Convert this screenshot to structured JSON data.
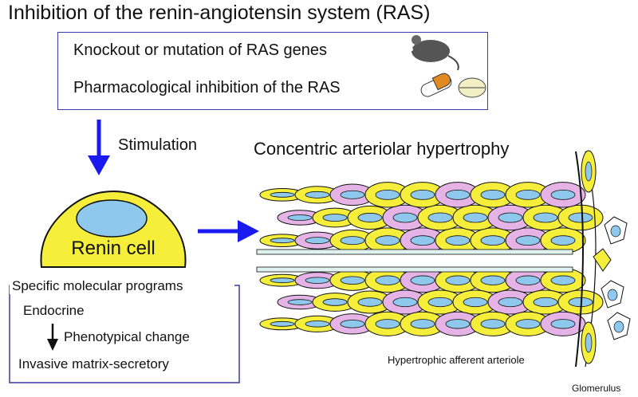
{
  "title": "Inhibition of the renin-angiotensin system (RAS)",
  "causes": {
    "item1": "Knockout or mutation of RAS genes",
    "item2": "Pharmacological inhibition of the RAS"
  },
  "arrow_label": "Stimulation",
  "outcome_title": "Concentric arteriolar hypertrophy",
  "cell_label": "Renin cell",
  "programs": {
    "heading": "Specific molecular programs",
    "from": "Endocrine",
    "change": "Phenotypical change",
    "to": "Invasive matrix-secretory"
  },
  "vessel_label": "Hypertrophic afferent arteriole",
  "glomerulus_label": "Glomerulus",
  "colors": {
    "box_border": "#3a3aa8",
    "arrow_blue": "#1a1aee",
    "cell_yellow": "#f5ee3a",
    "nucleus_blue": "#8ec8ec",
    "pink": "#e6b3e6"
  }
}
